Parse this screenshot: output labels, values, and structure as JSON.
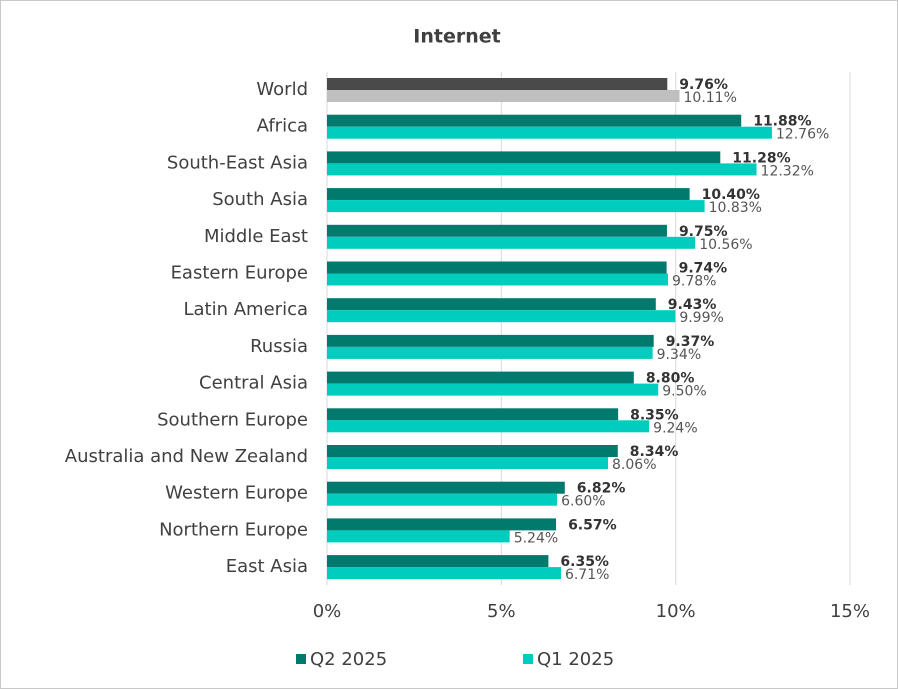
{
  "chart_data": {
    "type": "hbar",
    "title": "Internet",
    "categories": [
      "World",
      "Africa",
      "South-East Asia",
      "South Asia",
      "Middle East",
      "Eastern Europe",
      "Latin America",
      "Russia",
      "Central Asia",
      "Southern Europe",
      "Australia and New Zealand",
      "Western Europe",
      "Northern Europe",
      "East Asia"
    ],
    "series": [
      {
        "name": "Q2 2025",
        "color": "#007a6c",
        "colors": [
          "#4a4a4a",
          "#007a6c",
          "#007a6c",
          "#007a6c",
          "#007a6c",
          "#007a6c",
          "#007a6c",
          "#007a6c",
          "#007a6c",
          "#007a6c",
          "#007a6c",
          "#007a6c",
          "#007a6c",
          "#007a6c"
        ],
        "values": [
          9.76,
          11.88,
          11.28,
          10.4,
          9.75,
          9.74,
          9.43,
          9.37,
          8.8,
          8.35,
          8.34,
          6.82,
          6.57,
          6.35
        ],
        "value_labels": [
          "9.76%",
          "11.88%",
          "11.28%",
          "10.40%",
          "9.75%",
          "9.74%",
          "9.43%",
          "9.37%",
          "8.80%",
          "8.35%",
          "8.34%",
          "6.82%",
          "6.57%",
          "6.35%"
        ]
      },
      {
        "name": "Q1 2025",
        "color": "#00cdbd",
        "colors": [
          "#bfbfbf",
          "#00cdbd",
          "#00cdbd",
          "#00cdbd",
          "#00cdbd",
          "#00cdbd",
          "#00cdbd",
          "#00cdbd",
          "#00cdbd",
          "#00cdbd",
          "#00cdbd",
          "#00cdbd",
          "#00cdbd",
          "#00cdbd"
        ],
        "values": [
          10.11,
          12.76,
          12.32,
          10.83,
          10.56,
          9.78,
          9.99,
          9.34,
          9.5,
          9.24,
          8.06,
          6.6,
          5.24,
          6.71
        ],
        "value_labels": [
          "10.11%",
          "12.76%",
          "12.32%",
          "10.83%",
          "10.56%",
          "9.78%",
          "9.99%",
          "9.34%",
          "9.50%",
          "9.24%",
          "8.06%",
          "6.60%",
          "5.24%",
          "6.71%"
        ]
      }
    ],
    "xlim": [
      0,
      15
    ],
    "xticks": [
      {
        "value": 0,
        "label": "0%"
      },
      {
        "value": 5,
        "label": "5%"
      },
      {
        "value": 10,
        "label": "10%"
      },
      {
        "value": 15,
        "label": "15%"
      }
    ],
    "grid": true,
    "legend": "bottom"
  }
}
